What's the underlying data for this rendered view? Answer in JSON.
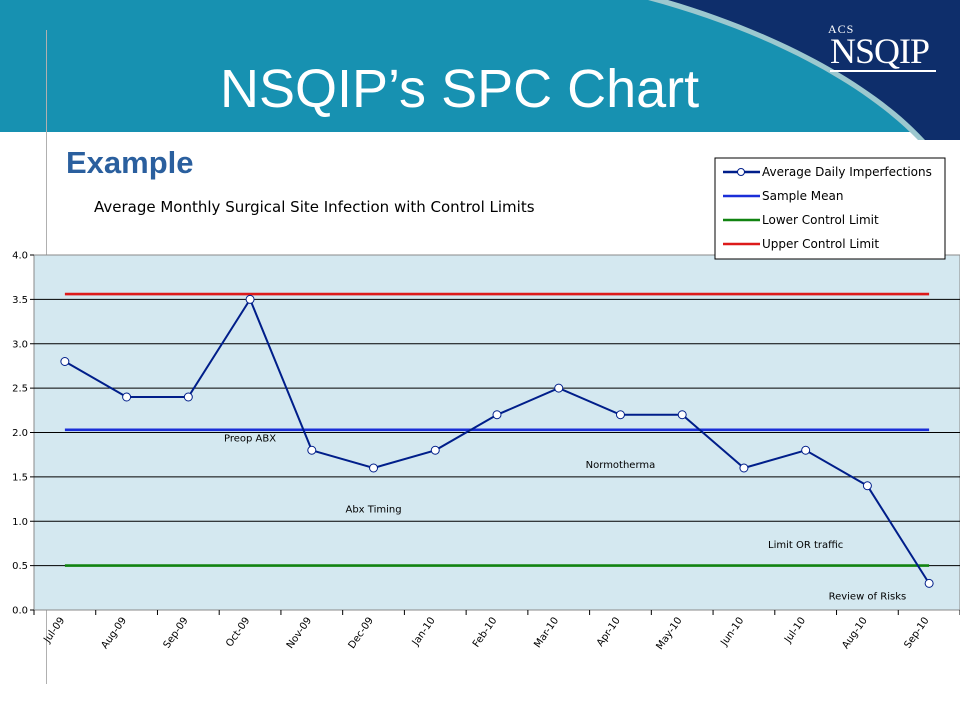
{
  "slide": {
    "title": "NSQIP’s SPC Chart",
    "subtitle": "Example",
    "logo": {
      "small": "ACS",
      "main": "NSQIP"
    }
  },
  "colors": {
    "header_teal": "#1791b1",
    "header_navy": "#0e2e6b",
    "header_accent": "#9cc8cf",
    "subtitle": "#2a5f9e",
    "plot_background": "#d4e8f0",
    "series_line": "#001e8a",
    "mean_line": "#1a2ed8",
    "lcl_line": "#118311",
    "ucl_line": "#dd1a1a"
  },
  "chart_data": {
    "type": "line",
    "title": "Average Monthly Surgical Site Infection with Control Limits",
    "categories": [
      "Jul-09",
      "Aug-09",
      "Sep-09",
      "Oct-09",
      "Nov-09",
      "Dec-09",
      "Jan-10",
      "Feb-10",
      "Mar-10",
      "Apr-10",
      "May-10",
      "Jun-10",
      "Jul-10",
      "Aug-10",
      "Sep-10"
    ],
    "series": [
      {
        "name": "Average Daily Imperfections",
        "values": [
          2.8,
          2.4,
          2.4,
          3.5,
          1.8,
          1.6,
          1.8,
          2.2,
          2.5,
          2.2,
          2.2,
          1.6,
          1.8,
          1.4,
          0.3
        ],
        "color": "#001e8a",
        "markers": true
      },
      {
        "name": "Sample Mean",
        "values": [
          2.03,
          2.03,
          2.03,
          2.03,
          2.03,
          2.03,
          2.03,
          2.03,
          2.03,
          2.03,
          2.03,
          2.03,
          2.03,
          2.03,
          2.03
        ],
        "color": "#1a2ed8"
      },
      {
        "name": "Lower Control Limit",
        "values": [
          0.5,
          0.5,
          0.5,
          0.5,
          0.5,
          0.5,
          0.5,
          0.5,
          0.5,
          0.5,
          0.5,
          0.5,
          0.5,
          0.5,
          0.5
        ],
        "color": "#118311"
      },
      {
        "name": "Upper Control Limit",
        "values": [
          3.56,
          3.56,
          3.56,
          3.56,
          3.56,
          3.56,
          3.56,
          3.56,
          3.56,
          3.56,
          3.56,
          3.56,
          3.56,
          3.56,
          3.56
        ],
        "color": "#dd1a1a"
      }
    ],
    "y_ticks": [
      "0.0",
      "0.5",
      "1.0",
      "1.5",
      "2.0",
      "2.5",
      "3.0",
      "3.5",
      "4.0"
    ],
    "ylim": [
      0,
      4
    ],
    "grid": true,
    "legend_position": "top-right",
    "annotations": [
      {
        "text": "Preop ABX",
        "x": "Oct-09",
        "y": 1.9
      },
      {
        "text": "Abx Timing",
        "x": "Dec-09",
        "y": 1.1
      },
      {
        "text": "Normotherma",
        "x": "Apr-10",
        "y": 1.6
      },
      {
        "text": "Limit OR traffic",
        "x": "Jul-10",
        "y": 0.7
      },
      {
        "text": "Review of Risks",
        "x": "Aug-10",
        "y": 0.12
      }
    ]
  }
}
